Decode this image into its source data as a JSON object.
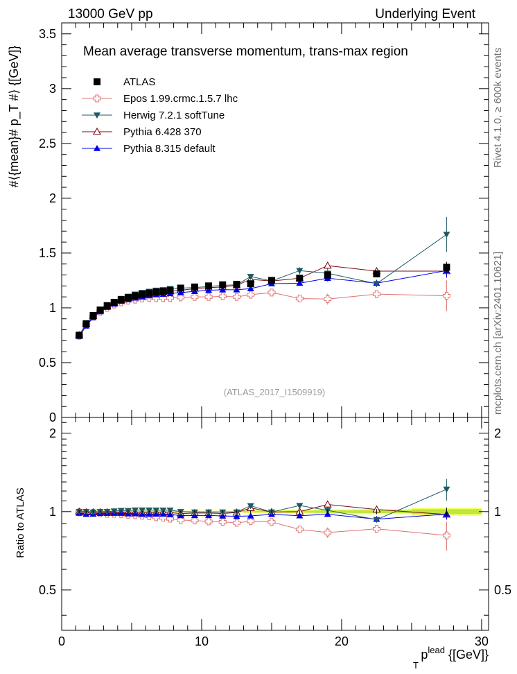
{
  "header": {
    "left": "13000 GeV pp",
    "right": "Underlying Event"
  },
  "side_labels": {
    "rivet": "Rivet 4.1.0, ≥ 600k events",
    "mcplots": "mcplots.cern.ch [arXiv:2401.10621]"
  },
  "watermark": "(ATLAS_2017_I1509919)",
  "axes": {
    "ylabel_main": "#⟨{mean}# p_T #⟩ {[GeV]}",
    "ylabel_ratio": "Ratio to ATLAS",
    "xlabel_main": "p",
    "xlabel_sub": "T",
    "xlabel_sup": "lead",
    "xlabel_unit": " {[GeV]}"
  },
  "colors": {
    "atlas": "#000000",
    "epos": "#e07070",
    "herwig": "#1e5a64",
    "pythia6": "#7a0a14",
    "pythia8": "#0000e6",
    "band_green": "#bde83e",
    "band_yellow": "#ffff66"
  },
  "chart_data": {
    "type": "scatter",
    "title": "Mean average transverse momentum, trans-max region",
    "x": [
      1.25,
      1.75,
      2.25,
      2.75,
      3.25,
      3.75,
      4.25,
      4.75,
      5.25,
      5.75,
      6.25,
      6.75,
      7.25,
      7.75,
      8.5,
      9.5,
      10.5,
      11.5,
      12.5,
      13.5,
      15.0,
      17.0,
      19.0,
      22.5,
      27.5
    ],
    "xlim": [
      0,
      30.5
    ],
    "ylim_main": [
      0,
      3.6
    ],
    "ylim_ratio": [
      0.35,
      2.3
    ],
    "xticks": [
      0,
      10,
      20,
      30
    ],
    "yticks_main": [
      0,
      0.5,
      1,
      1.5,
      2,
      2.5,
      3,
      3.5
    ],
    "yticks_main_labels": [
      "0",
      "0.5",
      "1",
      "1.5",
      "2",
      "2.5",
      "3",
      "3.5"
    ],
    "yticks_ratio": [
      0.5,
      1,
      2
    ],
    "yticks_ratio_labels": [
      "0.5",
      "1",
      "2"
    ],
    "series": [
      {
        "name": "ATLAS",
        "marker": "square",
        "values": [
          0.75,
          0.855,
          0.93,
          0.98,
          1.02,
          1.05,
          1.075,
          1.095,
          1.11,
          1.125,
          1.135,
          1.145,
          1.15,
          1.16,
          1.18,
          1.19,
          1.2,
          1.21,
          1.215,
          1.22,
          1.25,
          1.27,
          1.3,
          1.31,
          1.37
        ],
        "errors": [
          0.01,
          0.01,
          0.01,
          0.01,
          0.01,
          0.01,
          0.01,
          0.01,
          0.01,
          0.01,
          0.01,
          0.01,
          0.01,
          0.01,
          0.01,
          0.01,
          0.01,
          0.01,
          0.01,
          0.015,
          0.015,
          0.02,
          0.025,
          0.03,
          0.05
        ]
      },
      {
        "name": "Epos 1.99.crmc.1.5.7 lhc",
        "marker": "open-cross",
        "values": [
          0.745,
          0.845,
          0.92,
          0.965,
          1.0,
          1.03,
          1.05,
          1.065,
          1.075,
          1.085,
          1.09,
          1.09,
          1.09,
          1.09,
          1.095,
          1.1,
          1.1,
          1.105,
          1.1,
          1.12,
          1.14,
          1.085,
          1.08,
          1.125,
          1.11
        ],
        "errors": [
          0.01,
          0.01,
          0.01,
          0.01,
          0.01,
          0.01,
          0.01,
          0.01,
          0.01,
          0.01,
          0.015,
          0.015,
          0.015,
          0.015,
          0.02,
          0.02,
          0.02,
          0.025,
          0.025,
          0.03,
          0.03,
          0.03,
          0.05,
          0.03,
          0.14
        ]
      },
      {
        "name": "Herwig 7.2.1 softTune",
        "marker": "down-triangle",
        "values": [
          0.75,
          0.855,
          0.925,
          0.98,
          1.02,
          1.055,
          1.085,
          1.105,
          1.125,
          1.14,
          1.15,
          1.16,
          1.165,
          1.175,
          1.18,
          1.185,
          1.195,
          1.205,
          1.21,
          1.285,
          1.245,
          1.34,
          1.315,
          1.22,
          1.67
        ],
        "errors": [
          0.005,
          0.005,
          0.005,
          0.005,
          0.005,
          0.005,
          0.005,
          0.005,
          0.005,
          0.005,
          0.005,
          0.005,
          0.005,
          0.005,
          0.01,
          0.01,
          0.01,
          0.01,
          0.01,
          0.015,
          0.02,
          0.03,
          0.04,
          0.03,
          0.16
        ]
      },
      {
        "name": "Pythia 6.428 370",
        "marker": "open-triangle",
        "values": [
          0.75,
          0.85,
          0.925,
          0.975,
          1.015,
          1.045,
          1.07,
          1.09,
          1.105,
          1.115,
          1.125,
          1.135,
          1.145,
          1.15,
          1.16,
          1.175,
          1.185,
          1.19,
          1.205,
          1.26,
          1.245,
          1.27,
          1.385,
          1.335,
          1.335
        ],
        "errors": [
          0.005,
          0.005,
          0.005,
          0.005,
          0.005,
          0.005,
          0.005,
          0.005,
          0.005,
          0.005,
          0.005,
          0.005,
          0.005,
          0.005,
          0.01,
          0.01,
          0.01,
          0.01,
          0.01,
          0.015,
          0.02,
          0.02,
          0.03,
          0.03,
          0.06
        ]
      },
      {
        "name": "Pythia 8.315 default",
        "marker": "up-triangle",
        "values": [
          0.74,
          0.835,
          0.91,
          0.965,
          1.005,
          1.035,
          1.06,
          1.075,
          1.09,
          1.1,
          1.11,
          1.12,
          1.125,
          1.13,
          1.14,
          1.15,
          1.16,
          1.165,
          1.165,
          1.175,
          1.22,
          1.225,
          1.27,
          1.225,
          1.34
        ],
        "errors": [
          0.005,
          0.005,
          0.005,
          0.005,
          0.005,
          0.005,
          0.005,
          0.005,
          0.005,
          0.005,
          0.005,
          0.005,
          0.005,
          0.005,
          0.01,
          0.01,
          0.01,
          0.01,
          0.01,
          0.015,
          0.02,
          0.02,
          0.03,
          0.03,
          0.06
        ]
      }
    ]
  }
}
